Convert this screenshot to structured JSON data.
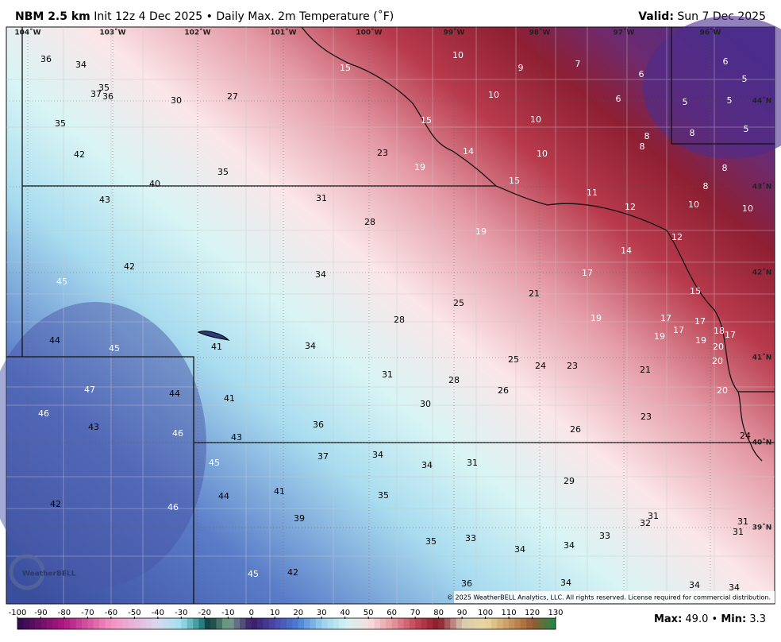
{
  "header": {
    "model": "NBM 2.5 km",
    "init": "Init 12z 4 Dec 2025",
    "separator": "•",
    "field": "Daily Max. 2m Temperature (˚F)",
    "valid_label": "Valid:",
    "valid_date": "Sun 7 Dec 2025"
  },
  "map": {
    "longitude_labels": [
      "104˚W",
      "103˚W",
      "102˚W",
      "101˚W",
      "100˚W",
      "99˚W",
      "98˚W",
      "97˚W",
      "96˚W"
    ],
    "latitude_labels": [
      "44˚N",
      "43˚N",
      "42˚N",
      "41˚N",
      "40˚N",
      "39˚N"
    ],
    "temperatures": [
      36,
      34,
      35,
      37,
      36,
      30,
      27,
      35,
      42,
      40,
      35,
      43,
      42,
      45,
      44,
      45,
      41,
      47,
      44,
      46,
      43,
      46,
      41,
      43,
      45,
      42,
      46,
      44,
      41,
      39,
      45,
      42,
      15,
      10,
      9,
      7,
      6,
      6,
      5,
      10,
      6,
      5,
      5,
      5,
      8,
      15,
      10,
      8,
      8,
      14,
      10,
      23,
      19,
      15,
      8,
      11,
      8,
      12,
      10,
      10,
      31,
      28,
      19,
      12,
      14,
      34,
      17,
      21,
      15,
      25,
      28,
      19,
      17,
      17,
      18,
      17,
      17,
      19,
      19,
      20,
      34,
      20,
      25,
      24,
      23,
      31,
      28,
      21,
      26,
      30,
      20,
      36,
      23,
      26,
      24,
      37,
      34,
      34,
      31,
      29,
      35,
      31,
      32,
      31,
      31,
      33,
      35,
      33,
      34,
      34,
      36,
      34,
      34,
      34
    ],
    "copyright": "© 2025 WeatherBELL Analytics, LLC. All rights reserved. License required for commercial distribution.",
    "logo": "WeatherBELL"
  },
  "colorbar": {
    "ticks": [
      -100,
      -90,
      -80,
      -70,
      -60,
      -50,
      -40,
      -30,
      -20,
      -10,
      0,
      10,
      20,
      30,
      40,
      50,
      60,
      70,
      80,
      90,
      100,
      110,
      120,
      130
    ]
  },
  "stats": {
    "max_label": "Max:",
    "max": {
      "value": 49,
      "label": "49.0"
    },
    "separator": "•",
    "min_label": "Min:",
    "min": 3.3
  }
}
